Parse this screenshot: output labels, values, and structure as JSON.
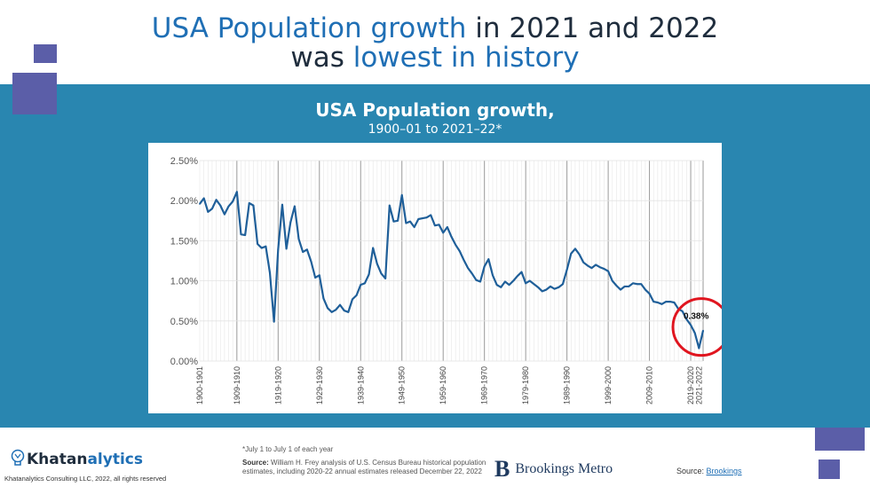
{
  "headline": {
    "line1_highlight": "USA Population growth",
    "line1_rest": " in 2021 and 2022",
    "line2_plain": "was ",
    "line2_highlight": "lowest in history"
  },
  "chart_data": {
    "type": "line",
    "title": "USA Population growth,",
    "subtitle": "1900–01 to 2021–22*",
    "xlabel": "",
    "ylabel": "",
    "y_ticks": [
      "2.50%",
      "2.00%",
      "1.50%",
      "1.00%",
      "0.50%",
      "0.00%"
    ],
    "ylim": [
      0,
      2.5
    ],
    "x_ticks": [
      "1900-1901",
      "1909-1910",
      "1919-1920",
      "1929-1930",
      "1939-1940",
      "1949-1950",
      "1959-1960",
      "1969-1970",
      "1979-1980",
      "1989-1990",
      "1999-2000",
      "2009-2010",
      "2019-2020",
      "2021-2022"
    ],
    "grid": true,
    "x_start_year": 1900,
    "series": [
      {
        "color": "#1f5f99",
        "values": [
          1.96,
          2.03,
          1.86,
          1.9,
          2.01,
          1.94,
          1.83,
          1.93,
          1.99,
          2.11,
          1.58,
          1.57,
          1.97,
          1.94,
          1.46,
          1.41,
          1.43,
          1.1,
          0.49,
          1.39,
          1.95,
          1.4,
          1.73,
          1.93,
          1.52,
          1.36,
          1.39,
          1.24,
          1.04,
          1.07,
          0.78,
          0.66,
          0.61,
          0.64,
          0.7,
          0.63,
          0.61,
          0.77,
          0.82,
          0.95,
          0.97,
          1.08,
          1.41,
          1.21,
          1.09,
          1.03,
          1.94,
          1.74,
          1.75,
          2.07,
          1.72,
          1.74,
          1.67,
          1.77,
          1.78,
          1.79,
          1.82,
          1.69,
          1.7,
          1.6,
          1.67,
          1.55,
          1.45,
          1.37,
          1.26,
          1.16,
          1.09,
          1.01,
          0.99,
          1.18,
          1.27,
          1.07,
          0.95,
          0.92,
          0.99,
          0.95,
          1.0,
          1.06,
          1.11,
          0.97,
          1.0,
          0.96,
          0.92,
          0.87,
          0.89,
          0.93,
          0.9,
          0.92,
          0.96,
          1.14,
          1.34,
          1.4,
          1.33,
          1.23,
          1.19,
          1.16,
          1.2,
          1.17,
          1.15,
          1.12,
          1.0,
          0.94,
          0.89,
          0.93,
          0.93,
          0.97,
          0.96,
          0.96,
          0.89,
          0.84,
          0.74,
          0.73,
          0.71,
          0.74,
          0.74,
          0.73,
          0.65,
          0.62,
          0.52,
          0.45,
          0.35,
          0.16,
          0.38
        ]
      }
    ],
    "annotation": "0.38%"
  },
  "footnote": "*July 1 to July 1 of each year",
  "source_label": "Source:",
  "source_text": " William H. Frey analysis of U.S. Census Bureau historical population estimates, including 2020-22 annual estimates released December 22, 2022",
  "brand": {
    "name_prefix": "Khatan",
    "name_suffix": "alytics",
    "tagline": "Khatanalytics Consulting LLC, 2022, all rights reserved"
  },
  "brookings": {
    "letter": "B",
    "name": "Brookings Metro"
  },
  "source_right": {
    "label": "Source: ",
    "link": "Brookings"
  },
  "colors": {
    "band": "#2986b0",
    "accent": "#1f6fb5",
    "squares": "#5b5ea8",
    "circle": "#e0151f"
  }
}
